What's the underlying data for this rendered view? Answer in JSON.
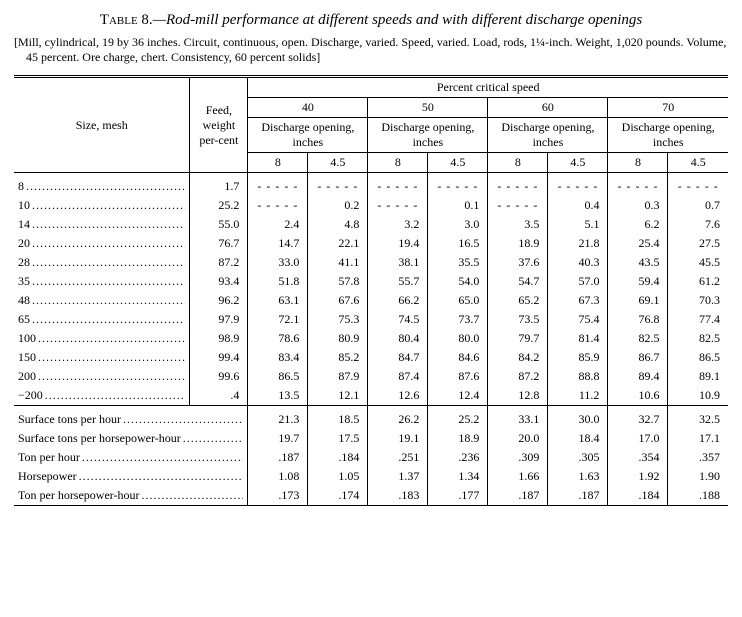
{
  "title": {
    "label": "Table 8.",
    "text": "—Rod-mill performance at different speeds and with different discharge openings"
  },
  "specs": "[Mill, cylindrical, 19 by 36 inches.  Circuit, continuous, open.  Discharge, varied.  Speed, varied. Load, rods, 1¼-inch.  Weight, 1,020 pounds.  Volume, 45 percent.  Ore charge, chert.  Consistency, 60 percent solids]",
  "headers": {
    "size": "Size, mesh",
    "feed": "Feed, weight per-cent",
    "pcs": "Percent critical speed",
    "discharge": "Discharge opening, inches",
    "speeds": [
      "40",
      "50",
      "60",
      "70"
    ],
    "openings": [
      "8",
      "4.5"
    ]
  },
  "rows": [
    {
      "label": "8",
      "feed": "1.7",
      "v": [
        "--",
        "--",
        "--",
        "--",
        "--",
        "--",
        "--",
        "--"
      ]
    },
    {
      "label": "10",
      "feed": "25.2",
      "v": [
        "--",
        "0.2",
        "--",
        "0.1",
        "--",
        "0.4",
        "0.3",
        "0.7"
      ]
    },
    {
      "label": "14",
      "feed": "55.0",
      "v": [
        "2.4",
        "4.8",
        "3.2",
        "3.0",
        "3.5",
        "5.1",
        "6.2",
        "7.6"
      ]
    },
    {
      "label": "20",
      "feed": "76.7",
      "v": [
        "14.7",
        "22.1",
        "19.4",
        "16.5",
        "18.9",
        "21.8",
        "25.4",
        "27.5"
      ]
    },
    {
      "label": "28",
      "feed": "87.2",
      "v": [
        "33.0",
        "41.1",
        "38.1",
        "35.5",
        "37.6",
        "40.3",
        "43.5",
        "45.5"
      ]
    },
    {
      "label": "35",
      "feed": "93.4",
      "v": [
        "51.8",
        "57.8",
        "55.7",
        "54.0",
        "54.7",
        "57.0",
        "59.4",
        "61.2"
      ]
    },
    {
      "label": "48",
      "feed": "96.2",
      "v": [
        "63.1",
        "67.6",
        "66.2",
        "65.0",
        "65.2",
        "67.3",
        "69.1",
        "70.3"
      ]
    },
    {
      "label": "65",
      "feed": "97.9",
      "v": [
        "72.1",
        "75.3",
        "74.5",
        "73.7",
        "73.5",
        "75.4",
        "76.8",
        "77.4"
      ]
    },
    {
      "label": "100",
      "feed": "98.9",
      "v": [
        "78.6",
        "80.9",
        "80.4",
        "80.0",
        "79.7",
        "81.4",
        "82.5",
        "82.5"
      ]
    },
    {
      "label": "150",
      "feed": "99.4",
      "v": [
        "83.4",
        "85.2",
        "84.7",
        "84.6",
        "84.2",
        "85.9",
        "86.7",
        "86.5"
      ]
    },
    {
      "label": "200",
      "feed": "99.6",
      "v": [
        "86.5",
        "87.9",
        "87.4",
        "87.6",
        "87.2",
        "88.8",
        "89.4",
        "89.1"
      ]
    },
    {
      "label": "−200",
      "feed": ".4",
      "v": [
        "13.5",
        "12.1",
        "12.6",
        "12.4",
        "12.8",
        "11.2",
        "10.6",
        "10.9"
      ]
    }
  ],
  "summary": [
    {
      "label": "Surface tons per hour",
      "v": [
        "21.3",
        "18.5",
        "26.2",
        "25.2",
        "33.1",
        "30.0",
        "32.7",
        "32.5"
      ]
    },
    {
      "label": "Surface tons per horsepower-hour",
      "v": [
        "19.7",
        "17.5",
        "19.1",
        "18.9",
        "20.0",
        "18.4",
        "17.0",
        "17.1"
      ]
    },
    {
      "label": "Ton per hour",
      "v": [
        ".187",
        ".184",
        ".251",
        ".236",
        ".309",
        ".305",
        ".354",
        ".357"
      ]
    },
    {
      "label": "Horsepower",
      "v": [
        "1.08",
        "1.05",
        "1.37",
        "1.34",
        "1.66",
        "1.63",
        "1.92",
        "1.90"
      ]
    },
    {
      "label": "Ton per horsepower-hour",
      "v": [
        ".173",
        ".174",
        ".183",
        ".177",
        ".187",
        ".187",
        ".184",
        ".188"
      ]
    }
  ],
  "style": {
    "dash": "- - - - -",
    "colors": {
      "text": "#000000",
      "bg": "#ffffff",
      "rule": "#000000"
    },
    "font_family": "Times New Roman",
    "base_fontsize": 12
  }
}
